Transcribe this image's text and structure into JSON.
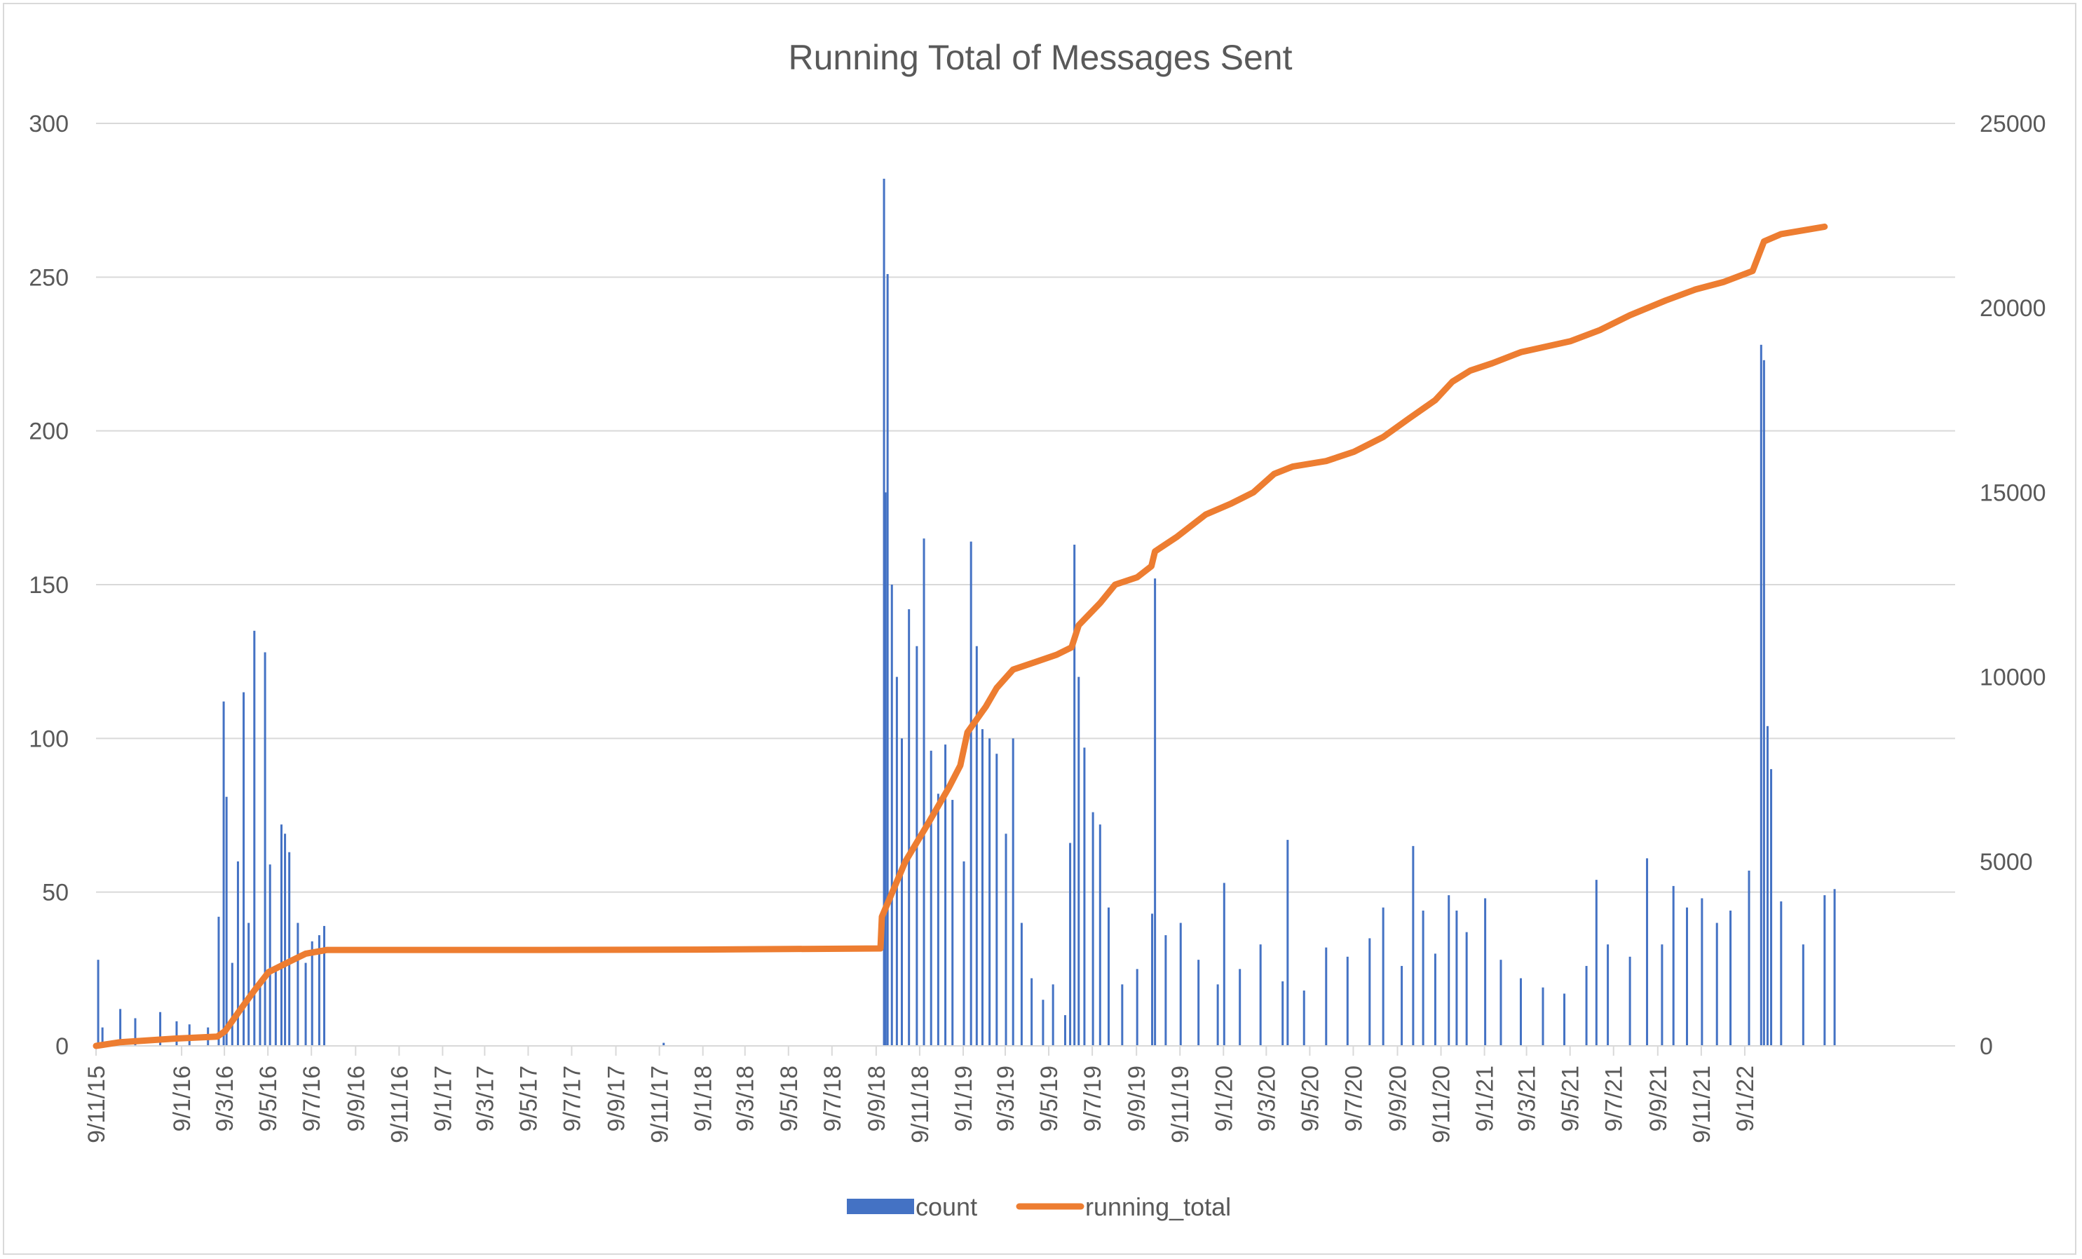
{
  "chart_data": {
    "type": "bar+line",
    "title": "Running Total of Messages Sent",
    "xlabel": "",
    "ylabel": "",
    "ylabel_right": "",
    "grid": true,
    "legend_position": "bottom",
    "x_domain": [
      "2015-09-11",
      "2022-10-31"
    ],
    "ylim_left": [
      0,
      300
    ],
    "ylim_right": [
      0,
      25000
    ],
    "y_ticks_left": [
      0,
      50,
      100,
      150,
      200,
      250,
      300
    ],
    "y_ticks_right": [
      0,
      5000,
      10000,
      15000,
      20000,
      25000
    ],
    "x_tick_labels": [
      "9/11/15",
      "9/1/16",
      "9/3/16",
      "9/5/16",
      "9/7/16",
      "9/9/16",
      "9/11/16",
      "9/1/17",
      "9/3/17",
      "9/5/17",
      "9/7/17",
      "9/9/17",
      "9/11/17",
      "9/1/18",
      "9/3/18",
      "9/5/18",
      "9/7/18",
      "9/9/18",
      "9/11/18",
      "9/1/19",
      "9/3/19",
      "9/5/19",
      "9/7/19",
      "9/9/19",
      "9/11/19",
      "9/1/20",
      "9/3/20",
      "9/5/20",
      "9/7/20",
      "9/9/20",
      "9/11/20",
      "9/1/21",
      "9/3/21",
      "9/5/21",
      "9/7/21",
      "9/9/21",
      "9/11/21",
      "9/1/22"
    ],
    "x_tick_dates": [
      "2015-09-11",
      "2016-01-09",
      "2016-03-09",
      "2016-05-09",
      "2016-07-09",
      "2016-09-09",
      "2016-11-09",
      "2017-01-09",
      "2017-03-09",
      "2017-05-09",
      "2017-07-09",
      "2017-09-09",
      "2017-11-09",
      "2018-01-09",
      "2018-03-09",
      "2018-05-09",
      "2018-07-09",
      "2018-09-09",
      "2018-11-09",
      "2019-01-09",
      "2019-03-09",
      "2019-05-09",
      "2019-07-09",
      "2019-09-09",
      "2019-11-09",
      "2020-01-09",
      "2020-03-09",
      "2020-05-09",
      "2020-07-09",
      "2020-09-09",
      "2020-11-09",
      "2021-01-09",
      "2021-03-09",
      "2021-05-09",
      "2021-07-09",
      "2021-09-09",
      "2021-11-09",
      "2022-01-09"
    ],
    "series": [
      {
        "name": "count",
        "type": "bar",
        "axis": "left",
        "color": "#4472c4",
        "points": [
          [
            "2015-09-14",
            28
          ],
          [
            "2015-09-20",
            6
          ],
          [
            "2015-10-15",
            12
          ],
          [
            "2015-11-05",
            9
          ],
          [
            "2015-12-10",
            11
          ],
          [
            "2016-01-02",
            8
          ],
          [
            "2016-01-20",
            7
          ],
          [
            "2016-02-15",
            6
          ],
          [
            "2016-03-01",
            42
          ],
          [
            "2016-03-08",
            112
          ],
          [
            "2016-03-12",
            81
          ],
          [
            "2016-03-20",
            27
          ],
          [
            "2016-03-28",
            60
          ],
          [
            "2016-04-05",
            115
          ],
          [
            "2016-04-12",
            40
          ],
          [
            "2016-04-20",
            135
          ],
          [
            "2016-04-28",
            20
          ],
          [
            "2016-05-05",
            128
          ],
          [
            "2016-05-12",
            59
          ],
          [
            "2016-05-20",
            25
          ],
          [
            "2016-05-28",
            72
          ],
          [
            "2016-06-02",
            69
          ],
          [
            "2016-06-08",
            63
          ],
          [
            "2016-06-20",
            40
          ],
          [
            "2016-07-01",
            27
          ],
          [
            "2016-07-10",
            34
          ],
          [
            "2016-07-20",
            36
          ],
          [
            "2016-07-27",
            39
          ],
          [
            "2017-11-15",
            1
          ],
          [
            "2018-09-20",
            282
          ],
          [
            "2018-09-22",
            180
          ],
          [
            "2018-09-25",
            251
          ],
          [
            "2018-10-01",
            150
          ],
          [
            "2018-10-08",
            120
          ],
          [
            "2018-10-15",
            100
          ],
          [
            "2018-10-25",
            142
          ],
          [
            "2018-11-05",
            130
          ],
          [
            "2018-11-15",
            165
          ],
          [
            "2018-11-25",
            96
          ],
          [
            "2018-12-05",
            82
          ],
          [
            "2018-12-15",
            98
          ],
          [
            "2018-12-25",
            80
          ],
          [
            "2019-01-10",
            60
          ],
          [
            "2019-01-20",
            164
          ],
          [
            "2019-01-28",
            130
          ],
          [
            "2019-02-05",
            103
          ],
          [
            "2019-02-15",
            100
          ],
          [
            "2019-02-25",
            95
          ],
          [
            "2019-03-10",
            69
          ],
          [
            "2019-03-20",
            100
          ],
          [
            "2019-04-01",
            40
          ],
          [
            "2019-04-15",
            22
          ],
          [
            "2019-05-01",
            15
          ],
          [
            "2019-05-15",
            20
          ],
          [
            "2019-06-01",
            10
          ],
          [
            "2019-06-08",
            66
          ],
          [
            "2019-06-14",
            163
          ],
          [
            "2019-06-20",
            120
          ],
          [
            "2019-06-28",
            97
          ],
          [
            "2019-07-10",
            76
          ],
          [
            "2019-07-20",
            72
          ],
          [
            "2019-08-01",
            45
          ],
          [
            "2019-08-20",
            20
          ],
          [
            "2019-09-10",
            25
          ],
          [
            "2019-10-01",
            43
          ],
          [
            "2019-10-05",
            152
          ],
          [
            "2019-10-20",
            36
          ],
          [
            "2019-11-10",
            40
          ],
          [
            "2019-12-05",
            28
          ],
          [
            "2020-01-01",
            20
          ],
          [
            "2020-01-10",
            53
          ],
          [
            "2020-02-01",
            25
          ],
          [
            "2020-03-01",
            33
          ],
          [
            "2020-04-01",
            21
          ],
          [
            "2020-04-08",
            67
          ],
          [
            "2020-05-01",
            18
          ],
          [
            "2020-06-01",
            32
          ],
          [
            "2020-07-01",
            29
          ],
          [
            "2020-08-01",
            35
          ],
          [
            "2020-08-20",
            45
          ],
          [
            "2020-09-15",
            26
          ],
          [
            "2020-10-01",
            65
          ],
          [
            "2020-10-15",
            44
          ],
          [
            "2020-11-01",
            30
          ],
          [
            "2020-11-20",
            49
          ],
          [
            "2020-12-01",
            44
          ],
          [
            "2020-12-15",
            37
          ],
          [
            "2021-01-10",
            48
          ],
          [
            "2021-02-01",
            28
          ],
          [
            "2021-03-01",
            22
          ],
          [
            "2021-04-01",
            19
          ],
          [
            "2021-05-01",
            17
          ],
          [
            "2021-06-01",
            26
          ],
          [
            "2021-06-15",
            54
          ],
          [
            "2021-07-01",
            33
          ],
          [
            "2021-08-01",
            29
          ],
          [
            "2021-08-25",
            61
          ],
          [
            "2021-09-15",
            33
          ],
          [
            "2021-10-01",
            52
          ],
          [
            "2021-10-20",
            45
          ],
          [
            "2021-11-10",
            48
          ],
          [
            "2021-12-01",
            40
          ],
          [
            "2021-12-20",
            44
          ],
          [
            "2022-01-15",
            57
          ],
          [
            "2022-02-01",
            228
          ],
          [
            "2022-02-05",
            223
          ],
          [
            "2022-02-10",
            104
          ],
          [
            "2022-02-15",
            90
          ],
          [
            "2022-03-01",
            47
          ],
          [
            "2022-04-01",
            33
          ],
          [
            "2022-05-01",
            49
          ],
          [
            "2022-05-15",
            51
          ]
        ]
      },
      {
        "name": "running_total",
        "type": "line",
        "axis": "right",
        "color": "#ed7d31",
        "points": [
          [
            "2015-09-11",
            0
          ],
          [
            "2015-10-15",
            100
          ],
          [
            "2016-01-01",
            200
          ],
          [
            "2016-02-28",
            250
          ],
          [
            "2016-03-10",
            400
          ],
          [
            "2016-04-01",
            1000
          ],
          [
            "2016-04-20",
            1500
          ],
          [
            "2016-05-10",
            2000
          ],
          [
            "2016-06-10",
            2300
          ],
          [
            "2016-07-01",
            2500
          ],
          [
            "2016-07-31",
            2600
          ],
          [
            "2016-10-01",
            2600
          ],
          [
            "2017-06-01",
            2600
          ],
          [
            "2018-01-01",
            2610
          ],
          [
            "2018-09-15",
            2640
          ],
          [
            "2018-09-17",
            3500
          ],
          [
            "2018-10-20",
            5000
          ],
          [
            "2018-11-20",
            6000
          ],
          [
            "2018-12-20",
            7000
          ],
          [
            "2019-01-05",
            7600
          ],
          [
            "2019-01-15",
            8500
          ],
          [
            "2019-02-10",
            9200
          ],
          [
            "2019-02-25",
            9700
          ],
          [
            "2019-03-20",
            10200
          ],
          [
            "2019-04-20",
            10400
          ],
          [
            "2019-05-20",
            10600
          ],
          [
            "2019-06-10",
            10800
          ],
          [
            "2019-06-20",
            11400
          ],
          [
            "2019-07-20",
            12000
          ],
          [
            "2019-08-10",
            12500
          ],
          [
            "2019-09-10",
            12700
          ],
          [
            "2019-09-30",
            13000
          ],
          [
            "2019-10-05",
            13400
          ],
          [
            "2019-11-05",
            13800
          ],
          [
            "2019-12-15",
            14400
          ],
          [
            "2020-01-20",
            14700
          ],
          [
            "2020-02-20",
            15000
          ],
          [
            "2020-03-20",
            15500
          ],
          [
            "2020-04-15",
            15700
          ],
          [
            "2020-06-01",
            15850
          ],
          [
            "2020-07-10",
            16100
          ],
          [
            "2020-08-20",
            16500
          ],
          [
            "2020-09-25",
            17000
          ],
          [
            "2020-11-01",
            17500
          ],
          [
            "2020-11-25",
            18000
          ],
          [
            "2020-12-20",
            18300
          ],
          [
            "2021-01-20",
            18500
          ],
          [
            "2021-03-01",
            18800
          ],
          [
            "2021-05-10",
            19100
          ],
          [
            "2021-06-20",
            19400
          ],
          [
            "2021-08-01",
            19800
          ],
          [
            "2021-09-20",
            20200
          ],
          [
            "2021-11-01",
            20500
          ],
          [
            "2021-12-10",
            20700
          ],
          [
            "2022-01-20",
            21000
          ],
          [
            "2022-02-05",
            21800
          ],
          [
            "2022-03-01",
            22000
          ],
          [
            "2022-05-01",
            22200
          ]
        ]
      }
    ]
  }
}
